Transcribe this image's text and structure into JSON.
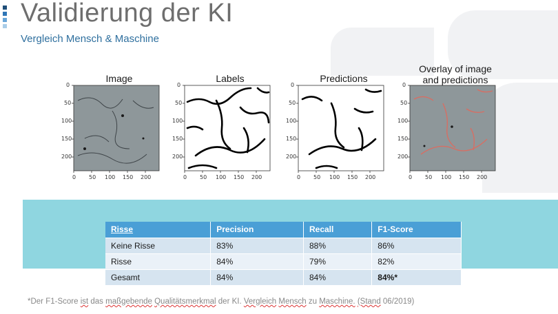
{
  "slide": {
    "title": "Validierung der KI",
    "subtitle": "Vergleich Mensch & Maschine",
    "logo_colors": [
      "#1f4e79",
      "#2e75b6",
      "#6aa6d8",
      "#a9cde8"
    ]
  },
  "figures": [
    {
      "title": "Image"
    },
    {
      "title": "Labels"
    },
    {
      "title": "Predictions"
    },
    {
      "title": "Overlay of image\nand predictions"
    }
  ],
  "axes": {
    "y_ticks": [
      "0",
      "50",
      "100",
      "150",
      "200"
    ],
    "x_ticks": [
      "0",
      "50",
      "100",
      "150",
      "200"
    ]
  },
  "table": {
    "headers": [
      "Risse",
      "Precision",
      "Recall",
      "F1-Score"
    ],
    "rows": [
      [
        "Keine Risse",
        "83%",
        "88%",
        "86%"
      ],
      [
        "Risse",
        "84%",
        "79%",
        "82%"
      ],
      [
        "Gesamt",
        "84%",
        "84%",
        "84%*"
      ]
    ],
    "highlight_color": "#e0302c"
  },
  "footnote": {
    "part1": "*Der F1-Score ",
    "w1": "ist",
    "part2": " das ",
    "w2": "maßgebende",
    "part3": " ",
    "w3": "Qualitätsmerkmal",
    "part4": " der KI. ",
    "w4": "Vergleich",
    "part5": " ",
    "w5": "Mensch",
    "part6": " zu ",
    "w6": "Maschine.",
    "part7": " ",
    "w7": "(Stand",
    "part8": " 06/2019)"
  }
}
